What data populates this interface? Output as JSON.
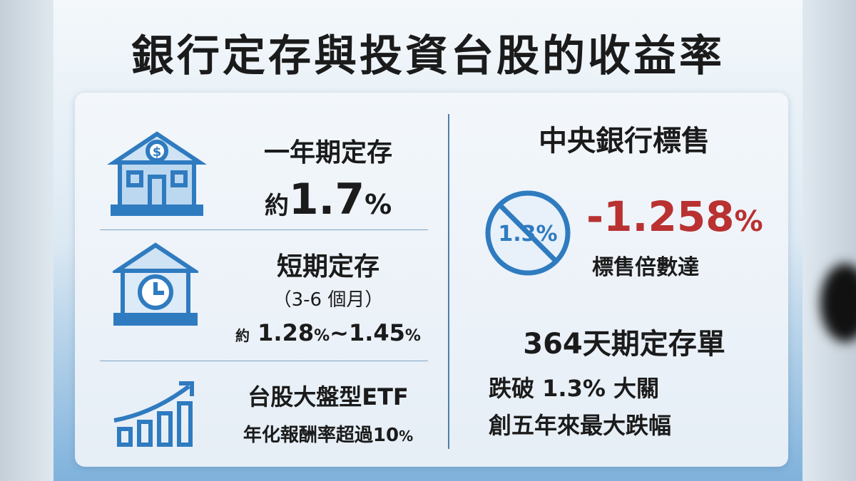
{
  "title": "銀行定存與投資台股的收益率",
  "left": [
    {
      "label": "一年期定存",
      "value_parts": [
        "約",
        "1.7",
        "%"
      ]
    },
    {
      "label": "短期定存",
      "note": "（3-6 個月）",
      "value_parts": [
        "約",
        "1.28",
        "%",
        "~1.45",
        "%"
      ]
    },
    {
      "label": "台股大盤型ETF",
      "value_parts": [
        "年化報酬率超過10",
        "%"
      ]
    }
  ],
  "right": {
    "heading": "中央銀行標售",
    "icon_text": "1.3%",
    "value_parts": [
      "-1.258",
      "%"
    ],
    "value_caption": "標售倍數達",
    "subheading": "364天期定存單",
    "lines": [
      "跌破 1.3% 大關",
      "創五年來最大跌幅"
    ]
  }
}
